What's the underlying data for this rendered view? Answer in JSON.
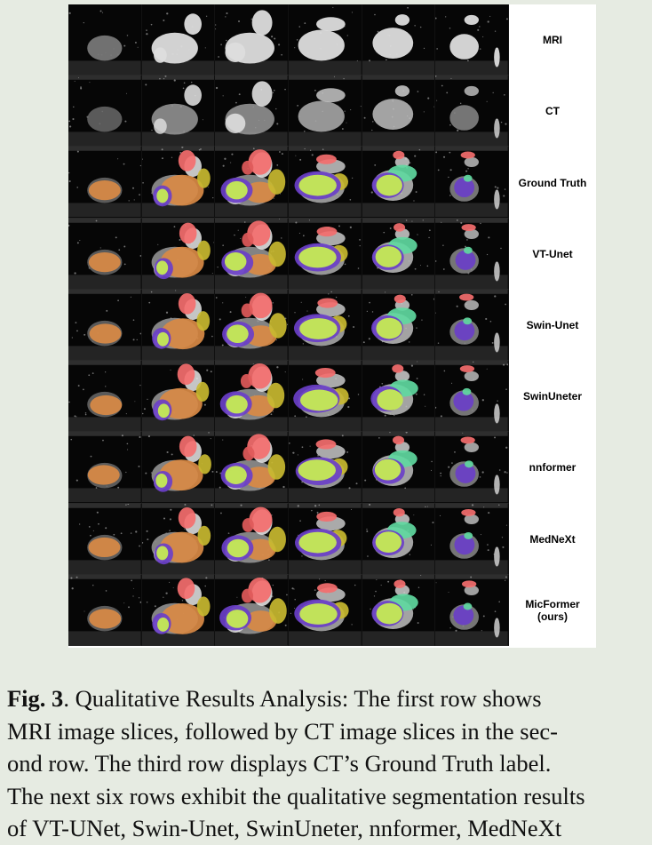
{
  "figure": {
    "row_labels": [
      "MRI",
      "CT",
      "Ground Truth",
      "VT-Unet",
      "Swin-Unet",
      "SwinUneter",
      "nnformer",
      "MedNeXt",
      "MicFormer\n(ours)"
    ],
    "columns": 6,
    "rows": 9,
    "segmentation_colors": {
      "left_ventricle_blood_pool": "#c8f050",
      "myocardium": "#6a3fc8",
      "left_atrium": "#d98a45",
      "right_ventricle": "#5fd8a0",
      "aorta": "#f46e6e",
      "pulmonary_artery": "#e05a5a",
      "right_atrium": "#c8b830"
    }
  },
  "caption": {
    "label": "Fig. 3",
    "lines": [
      ".  Qualitative Results Analysis:  The first row shows",
      "MRI image slices, followed by CT image slices in the sec-",
      "ond row.  The third row displays CT’s Ground Truth label.",
      "The next six rows exhibit the qualitative segmentation results",
      "of VT-UNet, Swin-Unet, SwinUneter, nnformer, MedNeXt"
    ]
  }
}
